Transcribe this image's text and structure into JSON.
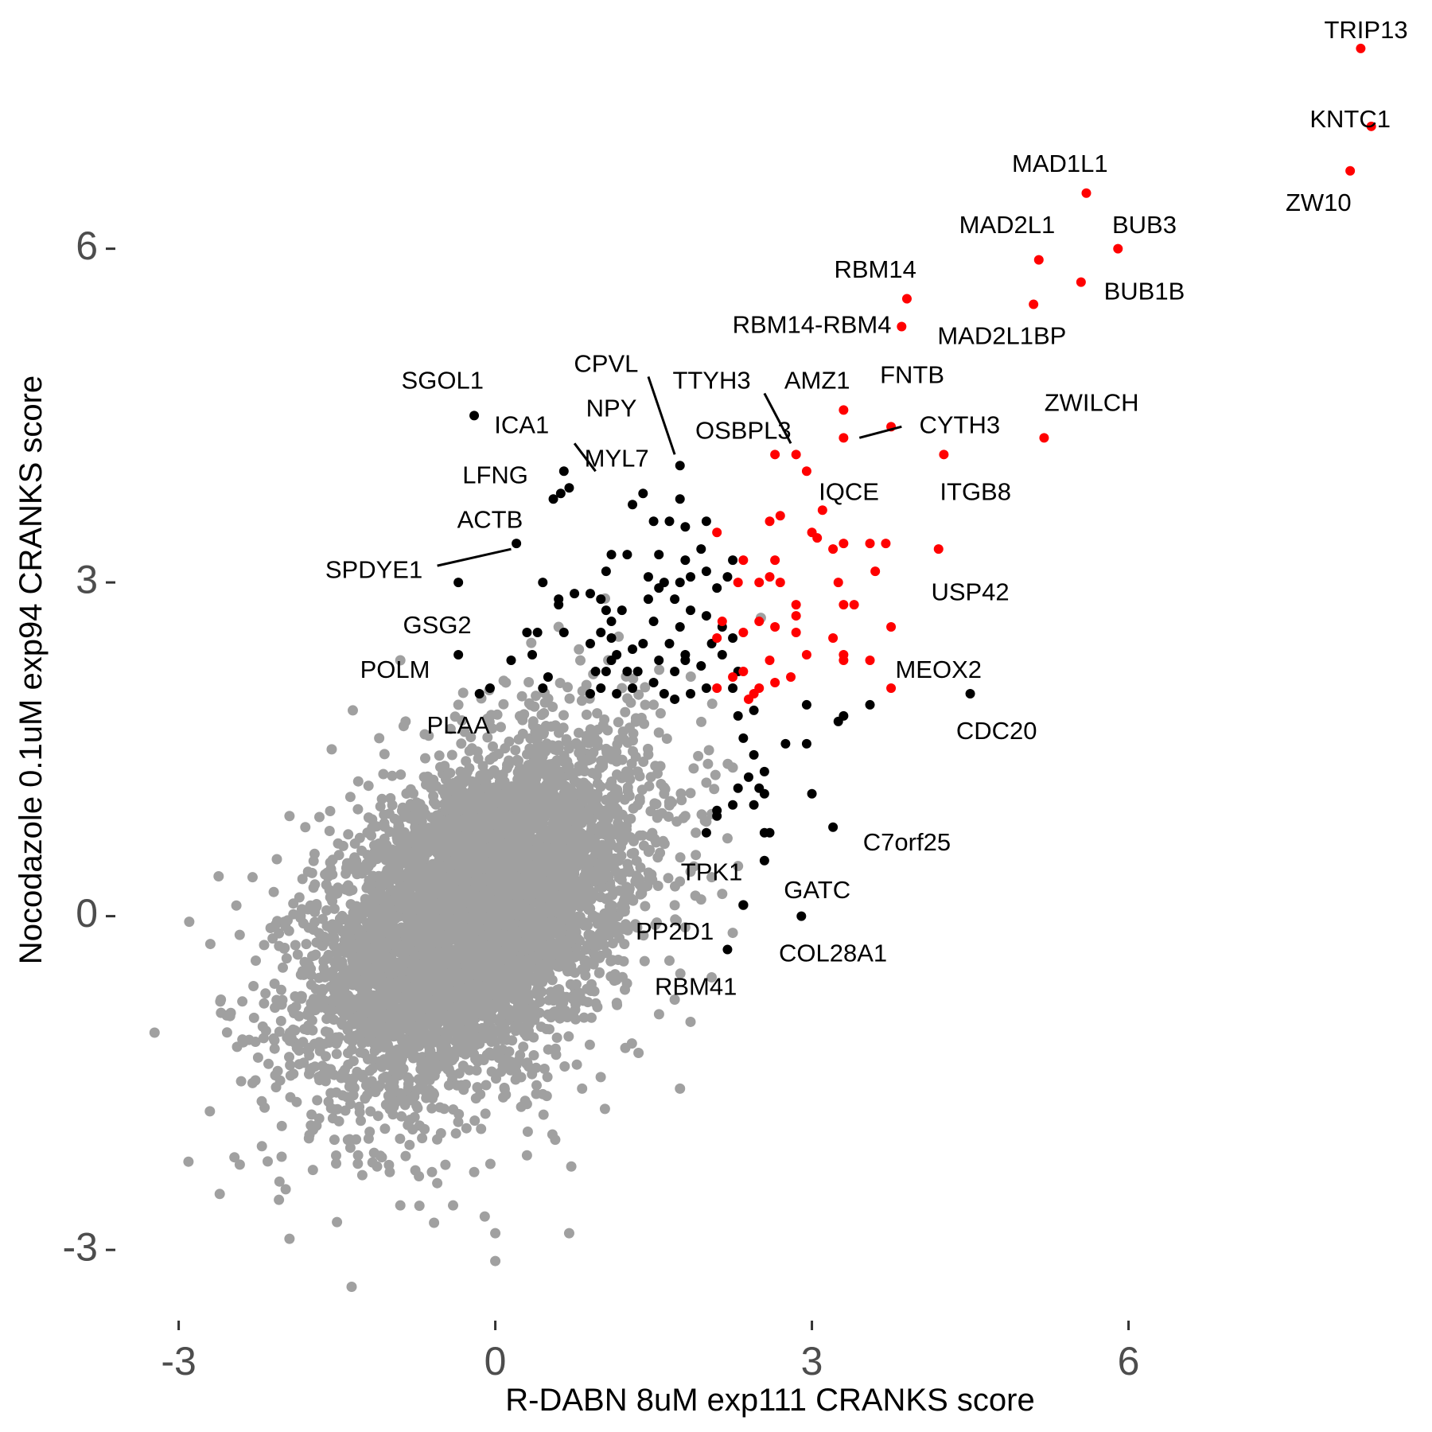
{
  "colors": {
    "background": "#ffffff",
    "gray": "#a0a0a0",
    "black": "#000000",
    "red": "#ff0000",
    "tick_text": "#4d4d4d"
  },
  "chart_data": {
    "type": "scatter",
    "xlabel": "R-DABN 8uM exp111 CRANKS score",
    "ylabel": "Nocodazole 0.1uM exp94 CRANKS score",
    "xlim": [
      -3.6,
      8.8
    ],
    "ylim": [
      -3.6,
      8.2
    ],
    "x_ticks": [
      -3,
      0,
      3,
      6
    ],
    "y_ticks": [
      -3,
      0,
      3,
      6
    ],
    "grid": false,
    "legend": "none",
    "gray_cloud": {
      "center": [
        -0.2,
        0
      ],
      "sd_x": 0.75,
      "sd_y": 0.75,
      "correlation": 0.45,
      "count": 6000
    },
    "gray_outliers": [
      [
        -2.9,
        -0.05
      ],
      [
        -2.7,
        -0.25
      ],
      [
        -2.6,
        -0.75
      ],
      [
        -2.3,
        0.35
      ],
      [
        -2.3,
        -1.5
      ],
      [
        -2.1,
        -1.1
      ],
      [
        -2.05,
        -2.55
      ],
      [
        -1.95,
        -2.9
      ],
      [
        -1.95,
        0.9
      ],
      [
        -1.8,
        0.8
      ],
      [
        -1.55,
        1.5
      ],
      [
        -1.5,
        -2.75
      ],
      [
        -1.35,
        1.85
      ],
      [
        -1.3,
        -2.15
      ],
      [
        -1.2,
        -2.0
      ],
      [
        -1.12,
        -2.25
      ],
      [
        -1.1,
        1.6
      ],
      [
        -1.0,
        -2.3
      ],
      [
        -0.9,
        -2.6
      ],
      [
        -0.9,
        2.3
      ],
      [
        -0.85,
        1.75
      ],
      [
        -0.6,
        -2.3
      ],
      [
        -0.55,
        -2.4
      ],
      [
        -0.4,
        -2.6
      ],
      [
        -0.35,
        1.9
      ],
      [
        -0.2,
        -2.3
      ],
      [
        -0.1,
        -2.7
      ],
      [
        0.0,
        -3.1
      ],
      [
        0.0,
        -2.85
      ],
      [
        0.3,
        -2.15
      ],
      [
        0.45,
        -1.6
      ],
      [
        0.6,
        2.6
      ],
      [
        0.7,
        -2.85
      ],
      [
        0.72,
        -2.25
      ],
      [
        1.0,
        0.95
      ],
      [
        1.2,
        2.05
      ],
      [
        1.35,
        1.3
      ],
      [
        1.5,
        1.9
      ],
      [
        1.6,
        1.1
      ],
      [
        1.65,
        -0.4
      ],
      [
        1.7,
        -0.75
      ],
      [
        1.75,
        -1.55
      ],
      [
        1.8,
        0.9
      ],
      [
        1.8,
        -0.1
      ],
      [
        1.85,
        0.4
      ],
      [
        1.85,
        -0.95
      ],
      [
        1.9,
        0.75
      ],
      [
        1.95,
        0.15
      ],
      [
        2.0,
        0.85
      ],
      [
        2.05,
        -0.55
      ],
      [
        2.05,
        0.35
      ],
      [
        2.15,
        0.2
      ],
      [
        2.2,
        0.7
      ],
      [
        2.25,
        -0.15
      ],
      [
        2.3,
        0.45
      ],
      [
        2.35,
        0.1
      ],
      [
        2.0,
        1.2
      ],
      [
        1.9,
        0.55
      ],
      [
        1.55,
        1.65
      ],
      [
        0.1,
        2.1
      ]
    ],
    "black_points": [
      [
        -0.2,
        4.5
      ],
      [
        0.65,
        4.0
      ],
      [
        0.7,
        3.85
      ],
      [
        0.55,
        3.75
      ],
      [
        0.62,
        3.8
      ],
      [
        1.75,
        4.05
      ],
      [
        1.4,
        3.8
      ],
      [
        1.75,
        3.75
      ],
      [
        1.3,
        3.7
      ],
      [
        1.5,
        3.55
      ],
      [
        1.65,
        3.55
      ],
      [
        1.8,
        3.5
      ],
      [
        2.0,
        3.55
      ],
      [
        1.1,
        3.25
      ],
      [
        1.25,
        3.25
      ],
      [
        1.55,
        3.25
      ],
      [
        1.8,
        3.2
      ],
      [
        1.95,
        3.3
      ],
      [
        2.0,
        3.1
      ],
      [
        1.05,
        3.1
      ],
      [
        1.45,
        3.05
      ],
      [
        1.6,
        3.0
      ],
      [
        1.75,
        3.0
      ],
      [
        1.85,
        3.05
      ],
      [
        2.1,
        2.95
      ],
      [
        2.2,
        3.05
      ],
      [
        2.25,
        3.2
      ],
      [
        1.55,
        2.95
      ],
      [
        1.7,
        2.85
      ],
      [
        1.45,
        2.85
      ],
      [
        1.2,
        2.75
      ],
      [
        1.05,
        2.75
      ],
      [
        1.85,
        2.75
      ],
      [
        2.0,
        2.7
      ],
      [
        2.15,
        2.6
      ],
      [
        1.5,
        2.65
      ],
      [
        1.75,
        2.6
      ],
      [
        1.65,
        2.45
      ],
      [
        1.4,
        2.45
      ],
      [
        1.3,
        2.4
      ],
      [
        1.1,
        2.5
      ],
      [
        1.25,
        2.2
      ],
      [
        1.05,
        2.2
      ],
      [
        1.35,
        2.2
      ],
      [
        1.55,
        2.3
      ],
      [
        1.8,
        2.3
      ],
      [
        1.95,
        2.25
      ],
      [
        2.15,
        2.35
      ],
      [
        2.25,
        2.5
      ],
      [
        1.1,
        2.3
      ],
      [
        1.5,
        2.1
      ],
      [
        1.7,
        2.2
      ],
      [
        1.85,
        2.0
      ],
      [
        2.0,
        2.05
      ],
      [
        2.25,
        2.05
      ],
      [
        1.3,
        2.05
      ],
      [
        1.15,
        2.0
      ],
      [
        1.0,
        2.05
      ],
      [
        1.6,
        2.0
      ],
      [
        1.7,
        1.95
      ],
      [
        1.8,
        2.35
      ],
      [
        2.05,
        2.45
      ],
      [
        1.1,
        2.65
      ],
      [
        2.3,
        2.2
      ],
      [
        2.45,
        1.85
      ],
      [
        2.3,
        1.8
      ],
      [
        2.35,
        1.6
      ],
      [
        2.45,
        1.45
      ],
      [
        2.55,
        1.3
      ],
      [
        2.5,
        1.15
      ],
      [
        2.4,
        1.25
      ],
      [
        2.3,
        1.15
      ],
      [
        2.55,
        1.1
      ],
      [
        2.45,
        1.0
      ],
      [
        2.25,
        1.0
      ],
      [
        2.1,
        0.9
      ],
      [
        2.1,
        0.95
      ],
      [
        2.0,
        0.75
      ],
      [
        2.55,
        0.75
      ],
      [
        2.6,
        0.75
      ],
      [
        2.75,
        1.55
      ],
      [
        2.95,
        1.55
      ],
      [
        2.95,
        1.9
      ],
      [
        3.25,
        1.75
      ],
      [
        3.3,
        1.8
      ],
      [
        3.55,
        1.9
      ],
      [
        4.5,
        2.0
      ],
      [
        3.0,
        1.1
      ],
      [
        3.2,
        0.8
      ],
      [
        2.55,
        0.5
      ],
      [
        2.35,
        0.1
      ],
      [
        2.9,
        0.0
      ],
      [
        2.2,
        -0.3
      ],
      [
        -0.35,
        2.35
      ],
      [
        -0.05,
        2.05
      ],
      [
        -0.15,
        2.0
      ],
      [
        0.15,
        2.3
      ],
      [
        0.3,
        2.55
      ],
      [
        0.35,
        2.35
      ],
      [
        0.4,
        2.55
      ],
      [
        0.45,
        3.0
      ],
      [
        0.6,
        2.85
      ],
      [
        0.6,
        2.8
      ],
      [
        0.75,
        2.9
      ],
      [
        0.9,
        2.9
      ],
      [
        1.0,
        2.85
      ],
      [
        0.65,
        2.55
      ],
      [
        0.9,
        2.45
      ],
      [
        0.95,
        2.2
      ],
      [
        0.45,
        2.05
      ],
      [
        0.5,
        2.15
      ],
      [
        0.9,
        2.0
      ],
      [
        1.0,
        2.55
      ],
      [
        1.15,
        2.35
      ],
      [
        0.2,
        3.35
      ],
      [
        -0.35,
        3.0
      ]
    ],
    "red_points": [
      [
        8.2,
        7.8
      ],
      [
        8.3,
        7.1
      ],
      [
        8.1,
        6.7
      ],
      [
        5.6,
        6.5
      ],
      [
        5.9,
        6.0
      ],
      [
        5.15,
        5.9
      ],
      [
        5.55,
        5.7
      ],
      [
        5.1,
        5.5
      ],
      [
        3.9,
        5.55
      ],
      [
        3.85,
        5.3
      ],
      [
        3.3,
        4.55
      ],
      [
        3.3,
        4.3
      ],
      [
        3.75,
        4.4
      ],
      [
        5.2,
        4.3
      ],
      [
        4.25,
        4.15
      ],
      [
        2.65,
        4.15
      ],
      [
        2.85,
        4.15
      ],
      [
        2.95,
        4.0
      ],
      [
        3.1,
        3.65
      ],
      [
        2.6,
        3.55
      ],
      [
        2.7,
        3.6
      ],
      [
        2.1,
        3.45
      ],
      [
        3.0,
        3.45
      ],
      [
        3.05,
        3.4
      ],
      [
        3.3,
        3.35
      ],
      [
        3.2,
        3.3
      ],
      [
        3.55,
        3.35
      ],
      [
        3.7,
        3.35
      ],
      [
        4.2,
        3.3
      ],
      [
        2.35,
        3.2
      ],
      [
        2.65,
        3.2
      ],
      [
        2.6,
        3.05
      ],
      [
        2.7,
        3.0
      ],
      [
        2.5,
        3.0
      ],
      [
        2.3,
        3.0
      ],
      [
        3.6,
        3.1
      ],
      [
        3.25,
        3.0
      ],
      [
        3.3,
        2.8
      ],
      [
        3.4,
        2.8
      ],
      [
        2.85,
        2.8
      ],
      [
        2.85,
        2.7
      ],
      [
        2.5,
        2.65
      ],
      [
        2.65,
        2.6
      ],
      [
        2.15,
        2.65
      ],
      [
        2.35,
        2.55
      ],
      [
        2.1,
        2.5
      ],
      [
        2.85,
        2.55
      ],
      [
        3.2,
        2.5
      ],
      [
        3.3,
        2.35
      ],
      [
        3.3,
        2.3
      ],
      [
        3.55,
        2.3
      ],
      [
        3.75,
        2.6
      ],
      [
        3.75,
        2.05
      ],
      [
        2.95,
        2.35
      ],
      [
        2.6,
        2.3
      ],
      [
        2.35,
        2.2
      ],
      [
        2.25,
        2.15
      ],
      [
        2.1,
        2.05
      ],
      [
        2.5,
        2.05
      ],
      [
        2.8,
        2.15
      ],
      [
        2.65,
        2.1
      ],
      [
        2.45,
        2.0
      ],
      [
        2.4,
        1.95
      ]
    ],
    "labels": [
      {
        "text": "TRIP13",
        "x": 8.25,
        "y": 7.95,
        "anchor": "middle"
      },
      {
        "text": "KNTC1",
        "x": 8.1,
        "y": 7.15,
        "anchor": "middle"
      },
      {
        "text": "ZW10",
        "x": 7.8,
        "y": 6.4,
        "anchor": "middle"
      },
      {
        "text": "MAD1L1",
        "x": 5.35,
        "y": 6.75,
        "anchor": "middle"
      },
      {
        "text": "BUB3",
        "x": 6.15,
        "y": 6.2,
        "anchor": "middle"
      },
      {
        "text": "MAD2L1",
        "x": 4.85,
        "y": 6.2,
        "anchor": "middle"
      },
      {
        "text": "BUB1B",
        "x": 6.15,
        "y": 5.6,
        "anchor": "middle"
      },
      {
        "text": "RBM14",
        "x": 3.6,
        "y": 5.8,
        "anchor": "middle"
      },
      {
        "text": "RBM14-RBM4",
        "x": 3.0,
        "y": 5.3,
        "anchor": "middle"
      },
      {
        "text": "MAD2L1BP",
        "x": 4.8,
        "y": 5.2,
        "anchor": "middle"
      },
      {
        "text": "SGOL1",
        "x": -0.5,
        "y": 4.8,
        "anchor": "middle"
      },
      {
        "text": "CPVL",
        "x": 1.05,
        "y": 4.95,
        "anchor": "middle"
      },
      {
        "text": "TTYH3",
        "x": 2.05,
        "y": 4.8,
        "anchor": "middle"
      },
      {
        "text": "AMZ1",
        "x": 3.05,
        "y": 4.8,
        "anchor": "middle"
      },
      {
        "text": "FNTB",
        "x": 3.95,
        "y": 4.85,
        "anchor": "middle"
      },
      {
        "text": "ZWILCH",
        "x": 5.65,
        "y": 4.6,
        "anchor": "middle"
      },
      {
        "text": "ICA1",
        "x": 0.25,
        "y": 4.4,
        "anchor": "middle"
      },
      {
        "text": "NPY",
        "x": 1.1,
        "y": 4.55,
        "anchor": "middle"
      },
      {
        "text": "OSBPL3",
        "x": 2.35,
        "y": 4.35,
        "anchor": "middle"
      },
      {
        "text": "CYTH3",
        "x": 4.4,
        "y": 4.4,
        "anchor": "middle"
      },
      {
        "text": "LFNG",
        "x": 0.0,
        "y": 3.95,
        "anchor": "middle"
      },
      {
        "text": "MYL7",
        "x": 1.15,
        "y": 4.1,
        "anchor": "middle"
      },
      {
        "text": "IQCE",
        "x": 3.35,
        "y": 3.8,
        "anchor": "middle"
      },
      {
        "text": "ITGB8",
        "x": 4.55,
        "y": 3.8,
        "anchor": "middle"
      },
      {
        "text": "ACTB",
        "x": -0.05,
        "y": 3.55,
        "anchor": "middle"
      },
      {
        "text": "SPDYE1",
        "x": -1.15,
        "y": 3.1,
        "anchor": "middle"
      },
      {
        "text": "USP42",
        "x": 4.5,
        "y": 2.9,
        "anchor": "middle"
      },
      {
        "text": "GSG2",
        "x": -0.55,
        "y": 2.6,
        "anchor": "middle"
      },
      {
        "text": "MEOX2",
        "x": 4.2,
        "y": 2.2,
        "anchor": "middle"
      },
      {
        "text": "POLM",
        "x": -0.95,
        "y": 2.2,
        "anchor": "middle"
      },
      {
        "text": "CDC20",
        "x": 4.75,
        "y": 1.65,
        "anchor": "middle"
      },
      {
        "text": "PLAA",
        "x": -0.35,
        "y": 1.7,
        "anchor": "middle"
      },
      {
        "text": "C7orf25",
        "x": 3.9,
        "y": 0.65,
        "anchor": "middle"
      },
      {
        "text": "TPK1",
        "x": 2.05,
        "y": 0.38,
        "anchor": "middle"
      },
      {
        "text": "GATC",
        "x": 3.05,
        "y": 0.22,
        "anchor": "middle"
      },
      {
        "text": "PP2D1",
        "x": 1.7,
        "y": -0.15,
        "anchor": "middle"
      },
      {
        "text": "COL28A1",
        "x": 3.2,
        "y": -0.35,
        "anchor": "middle"
      },
      {
        "text": "RBM41",
        "x": 1.9,
        "y": -0.65,
        "anchor": "middle"
      }
    ],
    "segments": [
      [
        1.45,
        4.85,
        1.7,
        4.15
      ],
      [
        2.55,
        4.7,
        2.8,
        4.25
      ],
      [
        3.45,
        4.3,
        3.85,
        4.4
      ],
      [
        0.75,
        4.25,
        0.95,
        4.0
      ],
      [
        -0.55,
        3.15,
        0.15,
        3.3
      ]
    ]
  }
}
